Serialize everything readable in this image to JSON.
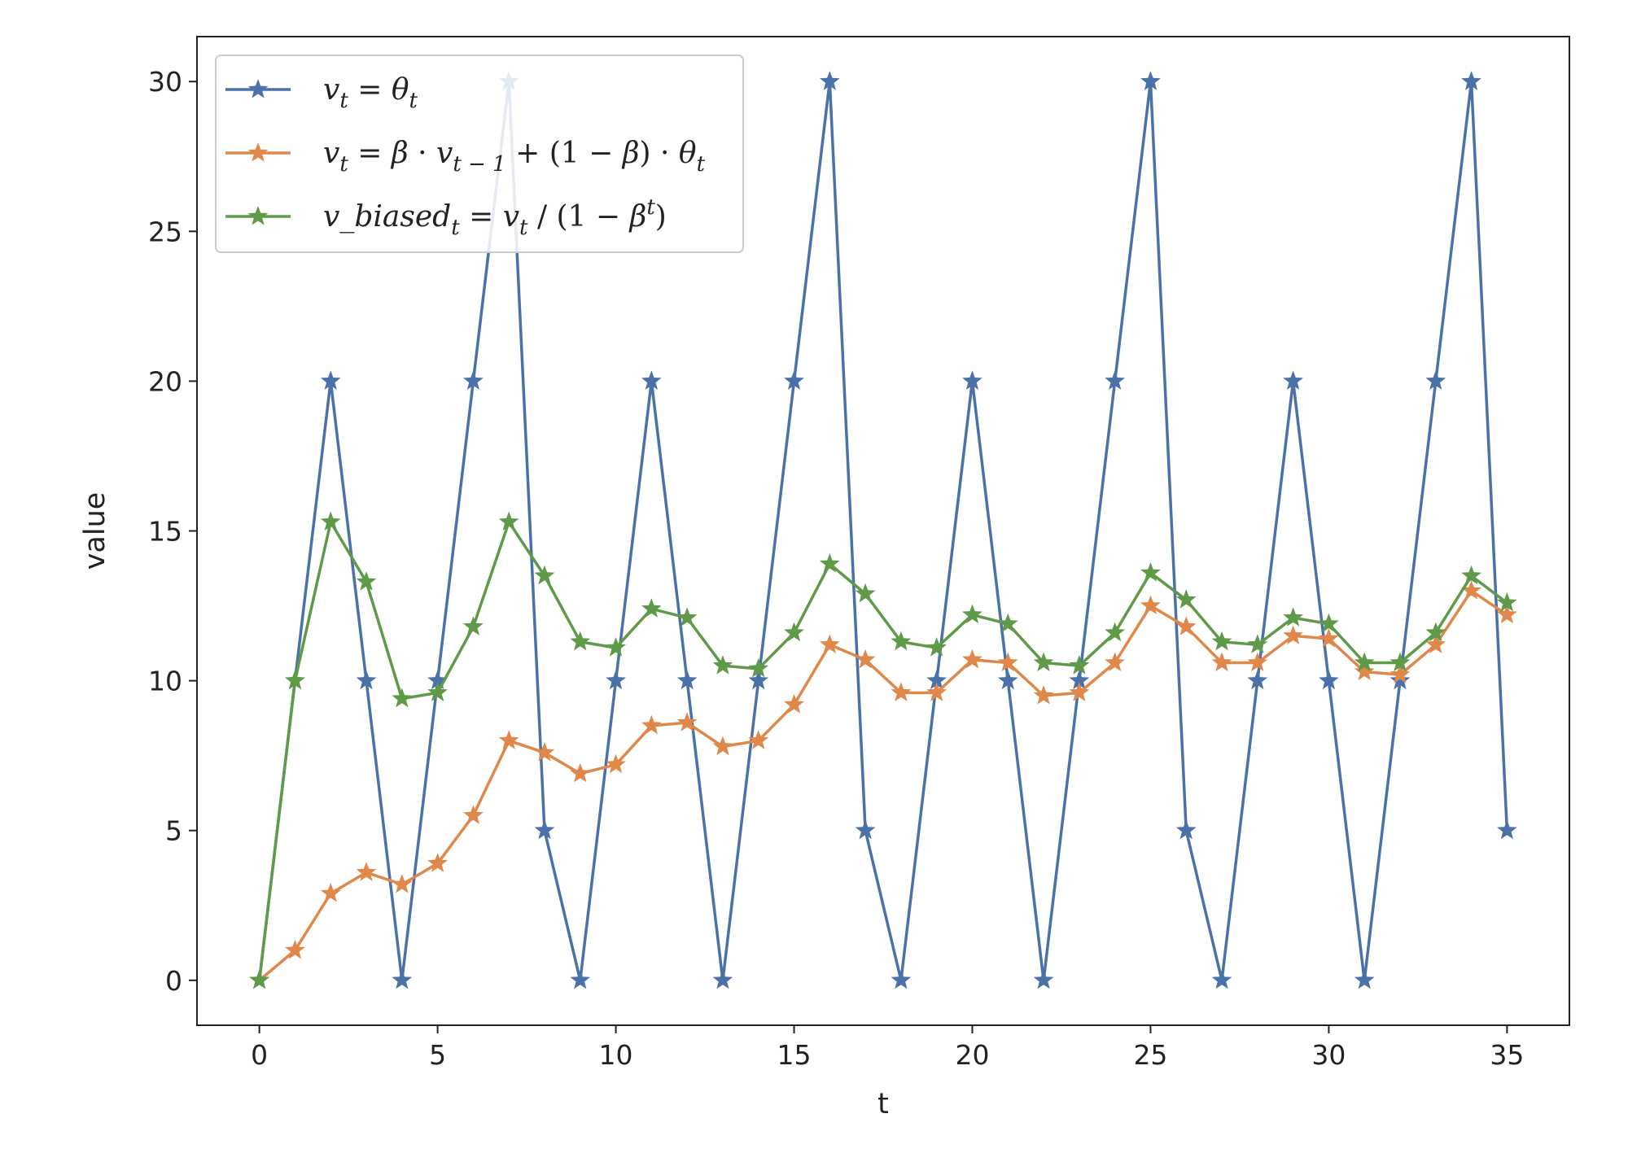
{
  "chart_data": {
    "type": "line",
    "xlabel": "t",
    "ylabel": "value",
    "xlim": [
      -1.75,
      36.75
    ],
    "ylim": [
      -1.5,
      31.5
    ],
    "xticks": [
      0,
      5,
      10,
      15,
      20,
      25,
      30,
      35
    ],
    "yticks": [
      0,
      5,
      10,
      15,
      20,
      25,
      30
    ],
    "grid": false,
    "legend_position": "top-left",
    "marker": "star",
    "x": [
      0,
      1,
      2,
      3,
      4,
      5,
      6,
      7,
      8,
      9,
      10,
      11,
      12,
      13,
      14,
      15,
      16,
      17,
      18,
      19,
      20,
      21,
      22,
      23,
      24,
      25,
      26,
      27,
      28,
      29,
      30,
      31,
      32,
      33,
      34,
      35
    ],
    "series": [
      {
        "name": "v_t = θ_t",
        "color": "#4a72a8",
        "values": [
          0,
          10,
          20,
          10,
          0,
          10,
          20,
          30,
          5,
          0,
          10,
          20,
          10,
          0,
          10,
          20,
          30,
          5,
          0,
          10,
          20,
          10,
          0,
          10,
          20,
          30,
          5,
          0,
          10,
          20,
          10,
          0,
          10,
          20,
          30,
          5
        ]
      },
      {
        "name": "v_t = β · v_{t−1} + (1 − β) · θ_t",
        "color": "#e0874a",
        "values": [
          0,
          1.0,
          2.9,
          3.6,
          3.2,
          3.9,
          5.5,
          8.0,
          7.6,
          6.9,
          7.2,
          8.5,
          8.6,
          7.8,
          8.0,
          9.2,
          11.2,
          10.7,
          9.6,
          9.6,
          10.7,
          10.6,
          9.5,
          9.6,
          10.6,
          12.5,
          11.8,
          10.6,
          10.6,
          11.5,
          11.4,
          10.3,
          10.2,
          11.2,
          13.0,
          12.2
        ]
      },
      {
        "name": "v_biased_t = v_t / (1 − β^t)",
        "color": "#5e9a48",
        "values": [
          0,
          10.0,
          15.3,
          13.3,
          9.4,
          9.6,
          11.8,
          15.3,
          13.5,
          11.3,
          11.1,
          12.4,
          12.1,
          10.5,
          10.4,
          11.6,
          13.9,
          12.9,
          11.3,
          11.1,
          12.2,
          11.9,
          10.6,
          10.5,
          11.6,
          13.6,
          12.7,
          11.3,
          11.2,
          12.1,
          11.9,
          10.6,
          10.6,
          11.6,
          13.5,
          12.6
        ]
      }
    ]
  }
}
